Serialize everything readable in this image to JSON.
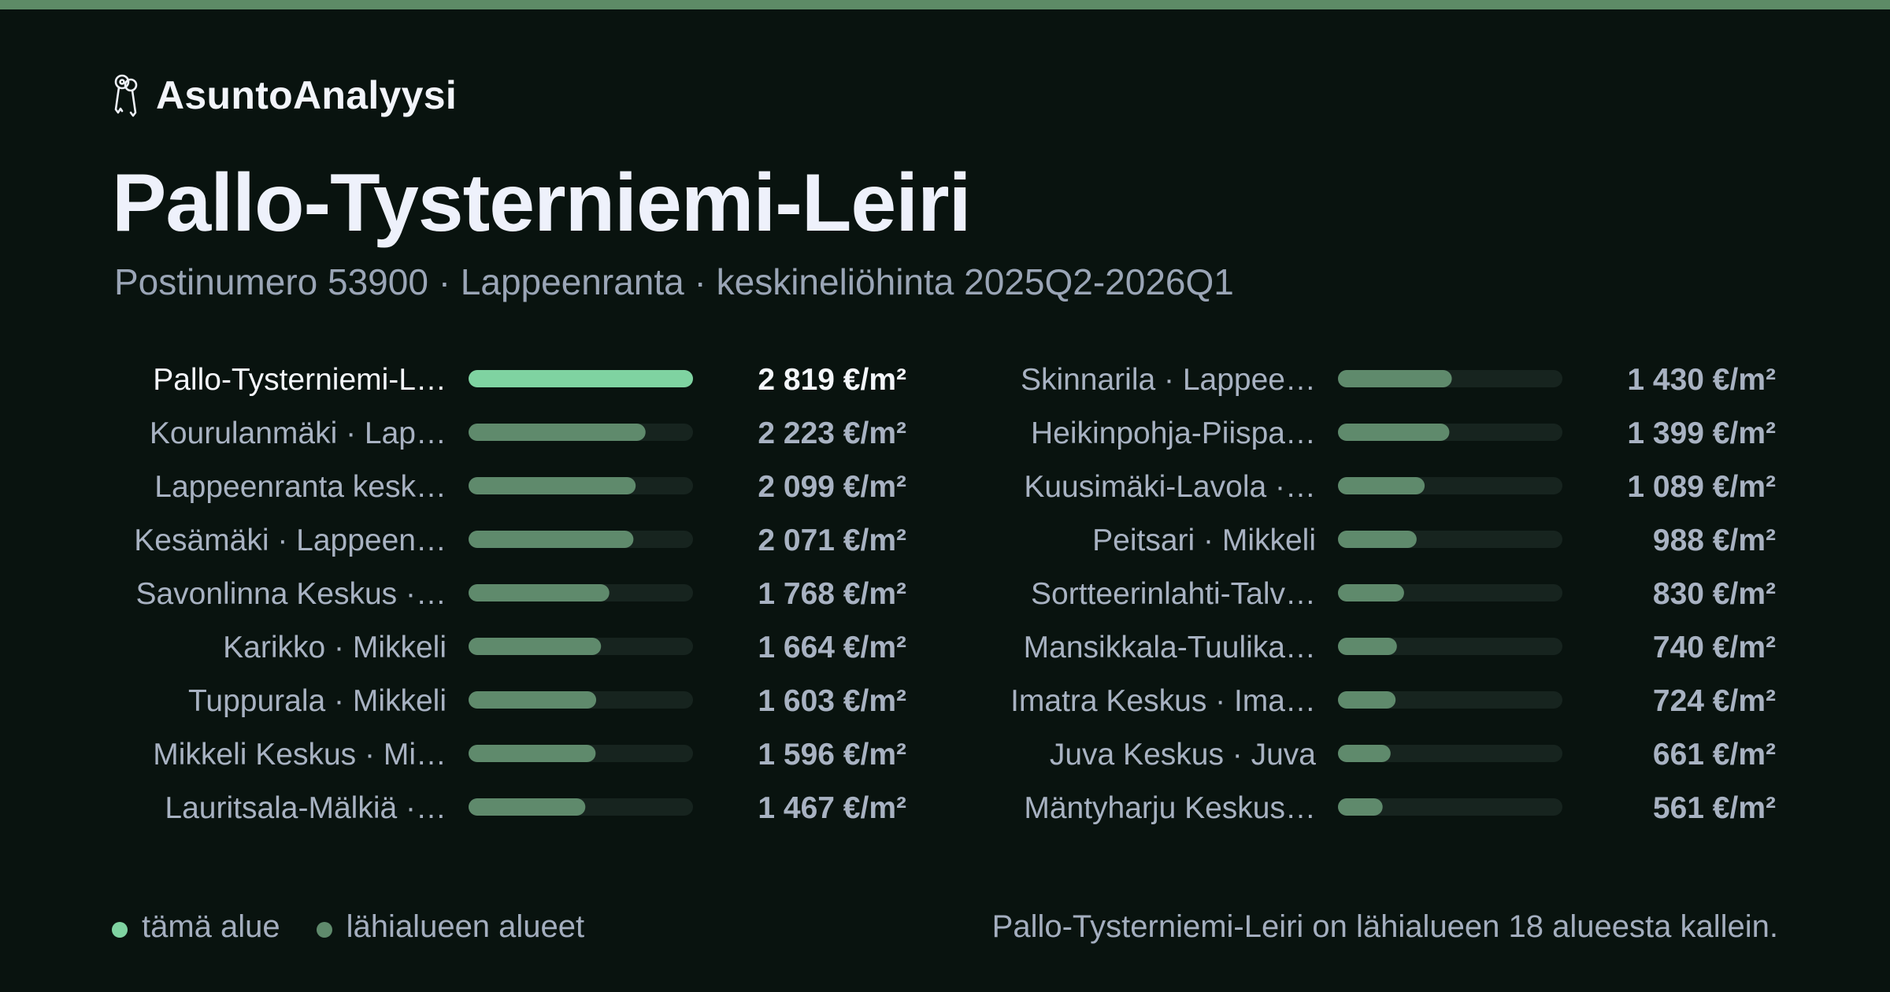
{
  "brand": {
    "name": "AsuntoAnalyysi",
    "icon": "keys-icon"
  },
  "header": {
    "title": "Pallo-Tysterniemi-Leiri",
    "subtitle": "Postinumero 53900 · Lappeenranta · keskineliöhinta 2025Q2-2026Q1"
  },
  "chart_data": {
    "type": "bar",
    "orientation": "horizontal",
    "unit": "€/m²",
    "xlim": [
      0,
      2819
    ],
    "grid": false,
    "columns": [
      {
        "rows": [
          {
            "label": "Pallo-Tysterniemi-L…",
            "value": 2819,
            "value_label": "2 819 €/m²",
            "highlight": true
          },
          {
            "label": "Kourulanmäki · Lap…",
            "value": 2223,
            "value_label": "2 223 €/m²"
          },
          {
            "label": "Lappeenranta kesk…",
            "value": 2099,
            "value_label": "2 099 €/m²"
          },
          {
            "label": "Kesämäki · Lappeen…",
            "value": 2071,
            "value_label": "2 071 €/m²"
          },
          {
            "label": "Savonlinna Keskus ·…",
            "value": 1768,
            "value_label": "1 768 €/m²"
          },
          {
            "label": "Karikko · Mikkeli",
            "value": 1664,
            "value_label": "1 664 €/m²"
          },
          {
            "label": "Tuppurala · Mikkeli",
            "value": 1603,
            "value_label": "1 603 €/m²"
          },
          {
            "label": "Mikkeli Keskus · Mi…",
            "value": 1596,
            "value_label": "1 596 €/m²"
          },
          {
            "label": "Lauritsala-Mälkiä ·…",
            "value": 1467,
            "value_label": "1 467 €/m²"
          }
        ]
      },
      {
        "rows": [
          {
            "label": "Skinnarila · Lappee…",
            "value": 1430,
            "value_label": "1 430 €/m²"
          },
          {
            "label": "Heikinpohja-Piispa…",
            "value": 1399,
            "value_label": "1 399 €/m²"
          },
          {
            "label": "Kuusimäki-Lavola ·…",
            "value": 1089,
            "value_label": "1 089 €/m²"
          },
          {
            "label": "Peitsari · Mikkeli",
            "value": 988,
            "value_label": "988 €/m²"
          },
          {
            "label": "Sortteerinlahti-Talv…",
            "value": 830,
            "value_label": "830 €/m²"
          },
          {
            "label": "Mansikkala-Tuulika…",
            "value": 740,
            "value_label": "740 €/m²"
          },
          {
            "label": "Imatra Keskus · Ima…",
            "value": 724,
            "value_label": "724 €/m²"
          },
          {
            "label": "Juva Keskus · Juva",
            "value": 661,
            "value_label": "661 €/m²"
          },
          {
            "label": "Mäntyharju Keskus…",
            "value": 561,
            "value_label": "561 €/m²"
          }
        ]
      }
    ]
  },
  "legend": [
    {
      "label": "tämä alue",
      "color": "#7fd3a1"
    },
    {
      "label": "lähialueen alueet",
      "color": "#5f8a6c"
    }
  ],
  "colors": {
    "highlight": "#7fd3a1",
    "bar": "#5f8a6c",
    "track": "#17241f",
    "accent": "#5d8b66"
  },
  "footnote": "Pallo-Tysterniemi-Leiri on lähialueen 18 alueesta kallein."
}
